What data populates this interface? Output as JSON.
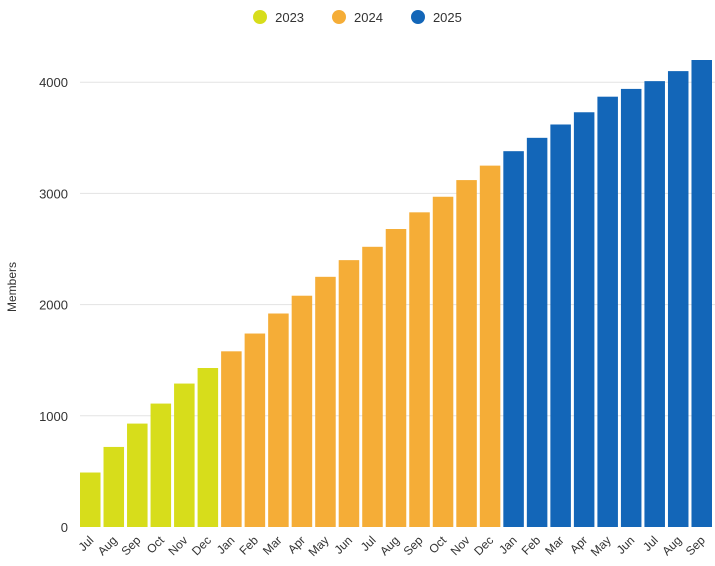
{
  "chart_data": {
    "type": "bar",
    "ylabel": "Members",
    "xlabel": "",
    "ylim": [
      0,
      4200
    ],
    "yticks": [
      0,
      1000,
      2000,
      3000,
      4000
    ],
    "grid": true,
    "legend_position": "top-center",
    "series": [
      {
        "name": "2023",
        "color": "#d7dd1b"
      },
      {
        "name": "2024",
        "color": "#f5ad37"
      },
      {
        "name": "2025",
        "color": "#1366b8"
      }
    ],
    "categories": [
      "Jul",
      "Aug",
      "Sep",
      "Oct",
      "Nov",
      "Dec",
      "Jan",
      "Feb",
      "Mar",
      "Apr",
      "May",
      "Jun",
      "Jul",
      "Aug",
      "Sep",
      "Oct",
      "Nov",
      "Dec",
      "Jan",
      "Feb",
      "Mar",
      "Apr",
      "May",
      "Jun",
      "Jul",
      "Aug",
      "Sep"
    ],
    "values": [
      490,
      720,
      930,
      1110,
      1290,
      1430,
      1580,
      1740,
      1920,
      2080,
      2250,
      2400,
      2520,
      2680,
      2830,
      2970,
      3120,
      3250,
      3380,
      3500,
      3620,
      3730,
      3870,
      3940,
      4010,
      4100,
      4200
    ],
    "series_index": [
      0,
      0,
      0,
      0,
      0,
      0,
      1,
      1,
      1,
      1,
      1,
      1,
      1,
      1,
      1,
      1,
      1,
      1,
      2,
      2,
      2,
      2,
      2,
      2,
      2,
      2,
      2
    ]
  }
}
